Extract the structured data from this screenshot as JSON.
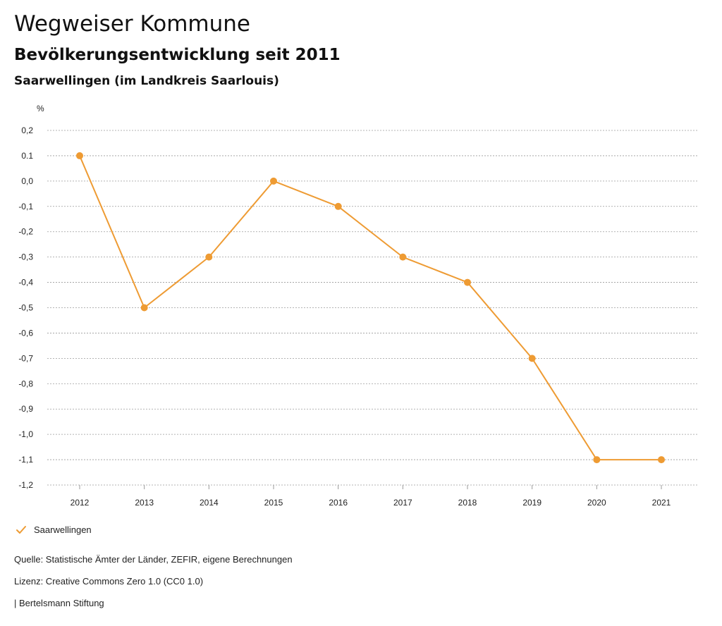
{
  "header": {
    "title": "Wegweiser Kommune",
    "subtitle": "Bevölkerungsentwicklung seit 2011",
    "region": "Saarwellingen (im Landkreis Saarlouis)"
  },
  "chart_data": {
    "type": "line",
    "title": "Bevölkerungsentwicklung seit 2011",
    "ylabel": "%",
    "xlabel": "",
    "categories": [
      "2012",
      "2013",
      "2014",
      "2015",
      "2016",
      "2017",
      "2018",
      "2019",
      "2020",
      "2021"
    ],
    "series": [
      {
        "name": "Saarwellingen",
        "color": "#ee9b33",
        "values": [
          0.1,
          -0.5,
          -0.3,
          0.0,
          -0.1,
          -0.3,
          -0.4,
          -0.7,
          -1.1,
          -1.1
        ]
      }
    ],
    "ylim": [
      -1.2,
      0.2
    ],
    "yticks": [
      0.2,
      0.1,
      0.0,
      -0.1,
      -0.2,
      -0.3,
      -0.4,
      -0.5,
      -0.6,
      -0.7,
      -0.8,
      -0.9,
      -1.0,
      -1.1,
      -1.2
    ],
    "ytick_labels": [
      "0,2",
      "0.1",
      "0,0",
      "-0,1",
      "-0,2",
      "-0,3",
      "-0,4",
      "-0,5",
      "-0,6",
      "-0,7",
      "-0,8",
      "-0,9",
      "-1,0",
      "-1,1",
      "-1,2"
    ],
    "grid": true,
    "legend": "bottom-left"
  },
  "legend": {
    "label": "Saarwellingen",
    "icon": "check-icon",
    "color": "#ee9b33"
  },
  "footer": {
    "source": "Quelle: Statistische Ämter der Länder, ZEFIR, eigene Berechnungen",
    "license": "Lizenz: Creative Commons Zero 1.0 (CC0 1.0)",
    "org": "| Bertelsmann Stiftung"
  }
}
